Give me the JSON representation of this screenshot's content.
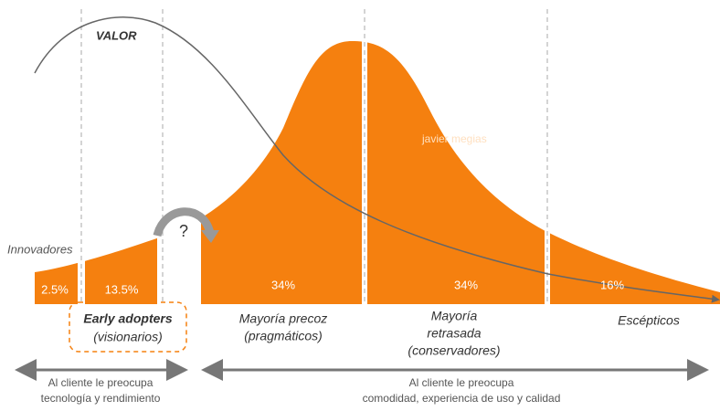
{
  "value_curve_label": "VALOR",
  "innovators_label": "Innovadores",
  "watermark": "javier megias",
  "chasm_mark": "?",
  "segments": [
    "2.5%",
    "13.5%",
    "34%",
    "34%",
    "16%"
  ],
  "early_adopters": {
    "title": "Early adopters",
    "subtitle": "(visionarios)"
  },
  "groups": [
    {
      "lines": [
        "Mayoría precoz",
        "(pragmáticos)"
      ]
    },
    {
      "lines": [
        "Mayoría",
        "retrasada",
        "(conservadores)"
      ]
    },
    {
      "lines": [
        "Escépticos"
      ]
    }
  ],
  "concerns": [
    {
      "lines": [
        "Al cliente le preocupa",
        "tecnología y rendimiento"
      ]
    },
    {
      "lines": [
        "Al cliente le preocupa",
        "comodidad, experiencia de uso y calidad"
      ]
    }
  ]
}
